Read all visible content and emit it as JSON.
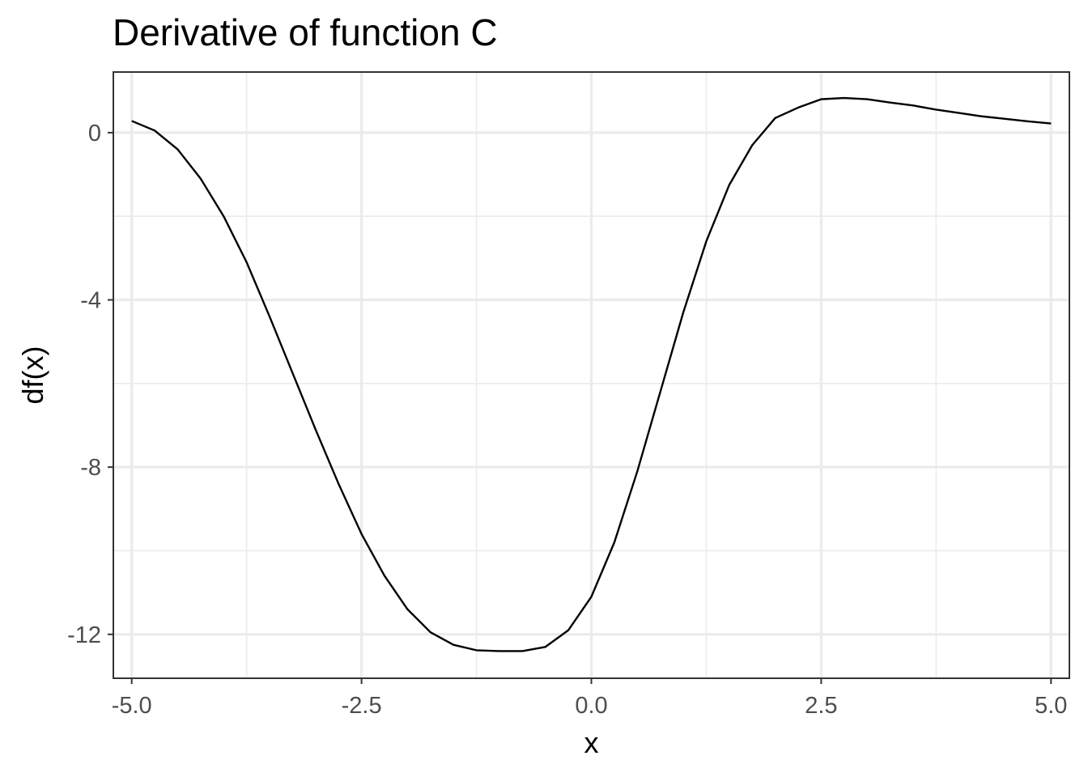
{
  "chart_data": {
    "type": "line",
    "title": "Derivative of function C",
    "xlabel": "x",
    "ylabel": "df(x)",
    "xlim": [
      -5.2,
      5.2
    ],
    "ylim": [
      -13.05,
      1.45
    ],
    "x_ticks": [
      -5.0,
      -2.5,
      0.0,
      2.5,
      5.0
    ],
    "x_tick_labels": [
      "-5.0",
      "-2.5",
      "0.0",
      "2.5",
      "5.0"
    ],
    "x_minor_ticks": [
      -3.75,
      -1.25,
      1.25,
      3.75
    ],
    "y_ticks": [
      -12,
      -8,
      -4,
      0
    ],
    "y_tick_labels": [
      "-12",
      "-8",
      "-4",
      "0"
    ],
    "y_minor_ticks": [
      -10,
      -6,
      -2
    ],
    "grid": true,
    "legend": "none",
    "line_color": "#000000",
    "series": [
      {
        "x": [
          -5.0,
          -4.75,
          -4.5,
          -4.25,
          -4.0,
          -3.75,
          -3.5,
          -3.25,
          -3.0,
          -2.75,
          -2.5,
          -2.25,
          -2.0,
          -1.75,
          -1.5,
          -1.25,
          -1.0,
          -0.75,
          -0.5,
          -0.25,
          0.0,
          0.25,
          0.5,
          0.75,
          1.0,
          1.25,
          1.5,
          1.75,
          2.0,
          2.25,
          2.5,
          2.75,
          3.0,
          3.25,
          3.5,
          3.75,
          4.0,
          4.25,
          4.5,
          4.75,
          5.0
        ],
        "y": [
          0.28,
          0.05,
          -0.4,
          -1.1,
          -2.0,
          -3.1,
          -4.4,
          -5.75,
          -7.1,
          -8.4,
          -9.6,
          -10.6,
          -11.4,
          -11.95,
          -12.25,
          -12.38,
          -12.4,
          -12.4,
          -12.3,
          -11.9,
          -11.1,
          -9.8,
          -8.1,
          -6.2,
          -4.3,
          -2.6,
          -1.25,
          -0.3,
          0.35,
          0.6,
          0.8,
          0.83,
          0.8,
          0.72,
          0.65,
          0.55,
          0.47,
          0.39,
          0.33,
          0.27,
          0.22
        ]
      }
    ]
  }
}
